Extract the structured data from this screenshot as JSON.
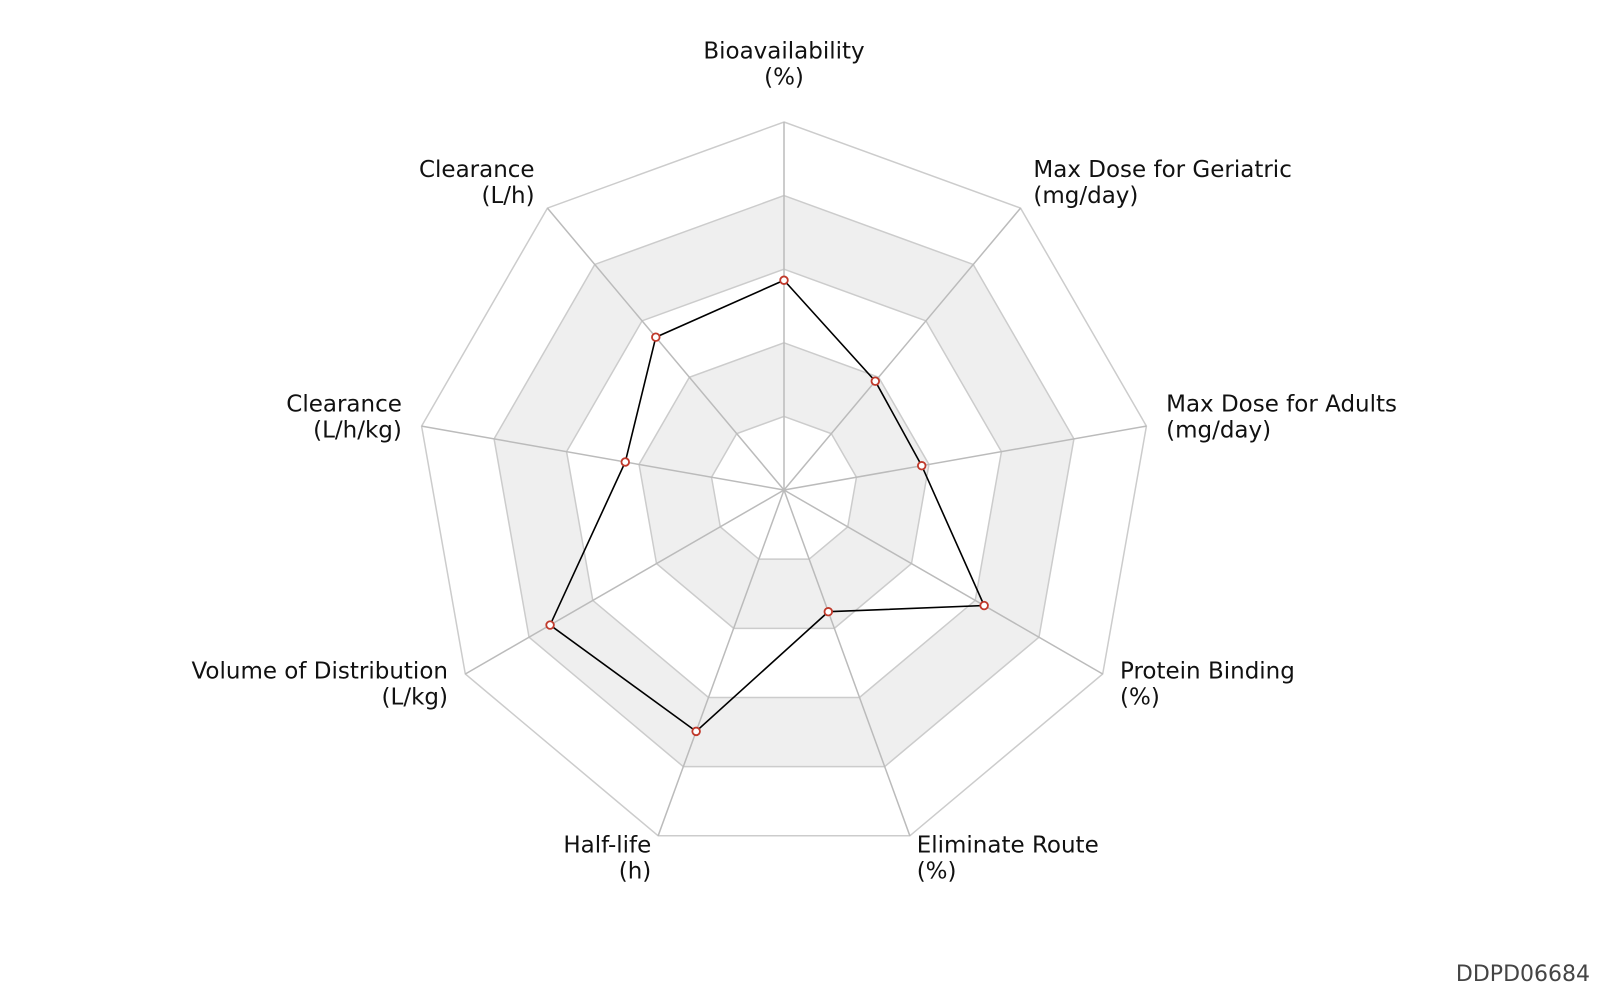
{
  "chart_data": {
    "type": "radar",
    "categories": [
      "Bioavailability",
      "Max Dose for Geriatric",
      "Max Dose for Adults",
      "Protein Binding",
      "Eliminate Route",
      "Half-life",
      "Volume of Distribution",
      "Clearance",
      "Clearance"
    ],
    "units": [
      "(%)",
      "(mg/day)",
      "(mg/day)",
      "(%)",
      "(%)",
      "(h)",
      "(L/kg)",
      "(L/h/kg)",
      "(L/h)"
    ],
    "series": [
      {
        "color": "#000000",
        "marker_color": "#c0392b",
        "values": [
          2.85,
          1.93,
          1.9,
          3.14,
          1.76,
          3.49,
          3.67,
          2.19,
          2.71
        ]
      }
    ],
    "rlim": [
      0,
      5
    ],
    "rticks": [
      1,
      2,
      3,
      4,
      5
    ],
    "grid": true,
    "shaded_bands": [
      [
        1,
        2
      ],
      [
        3,
        4
      ]
    ],
    "watermark": "DDPD06684"
  }
}
